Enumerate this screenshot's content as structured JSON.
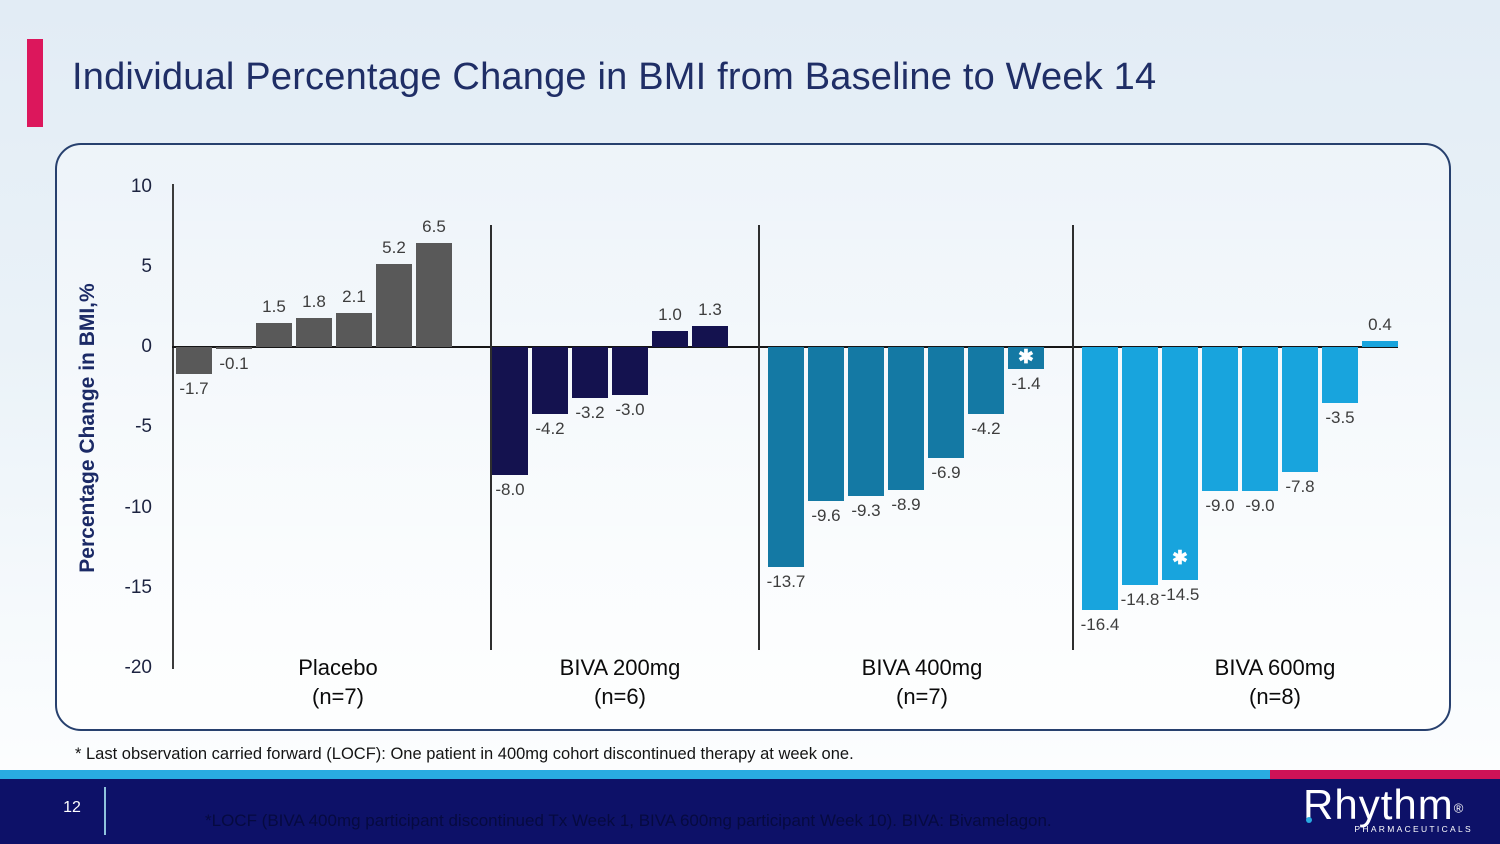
{
  "slide": {
    "title": "Individual Percentage Change in BMI from Baseline to Week 14",
    "page_number": "12",
    "footnote": "* Last observation carried forward (LOCF): One patient in 400mg cohort discontinued therapy at week one.",
    "footer_note": "*LOCF (BIVA 400mg participant discontinued Tx Week 1, BIVA 600mg participant Week 10). BIVA: Bivamelagon.",
    "logo": {
      "name": "Rhythm",
      "reg": "®",
      "sub": "PHARMACEUTICALS"
    },
    "colors": {
      "accent_pink": "#dc175c",
      "title_navy": "#1f2e66",
      "footer_navy": "#0d1168",
      "stripe_cyan": "#29abe2",
      "stripe_pink": "#ce1257"
    }
  },
  "chart_data": {
    "type": "bar",
    "title": "Individual Percentage Change in BMI from Baseline to Week 14",
    "ylabel": "Percentage Change in BMI,%",
    "ylim": [
      -20,
      10
    ],
    "yticks": [
      10,
      5,
      0,
      -5,
      -10,
      -15,
      -20
    ],
    "grid": false,
    "legend": "none",
    "star_char": "✱",
    "star_meaning": "Last observation carried forward (LOCF)",
    "groups": [
      {
        "label": "Placebo",
        "n_label": "(n=7)",
        "color": "#595959",
        "values": [
          -1.7,
          -0.1,
          1.5,
          1.8,
          2.1,
          5.2,
          6.5
        ],
        "star_indices": []
      },
      {
        "label": "BIVA 200mg",
        "n_label": "(n=6)",
        "color": "#14124f",
        "values": [
          -8.0,
          -4.2,
          -3.2,
          -3.0,
          1.0,
          1.3
        ],
        "star_indices": []
      },
      {
        "label": "BIVA 400mg",
        "n_label": "(n=7)",
        "color": "#1479a4",
        "values": [
          -13.7,
          -9.6,
          -9.3,
          -8.9,
          -6.9,
          -4.2,
          -1.4
        ],
        "star_indices": [
          6
        ]
      },
      {
        "label": "BIVA 600mg",
        "n_label": "(n=8)",
        "color": "#18a4dd",
        "values": [
          -16.4,
          -14.8,
          -14.5,
          -9.0,
          -9.0,
          -7.8,
          -3.5,
          0.4
        ],
        "star_indices": [
          2
        ]
      }
    ]
  }
}
